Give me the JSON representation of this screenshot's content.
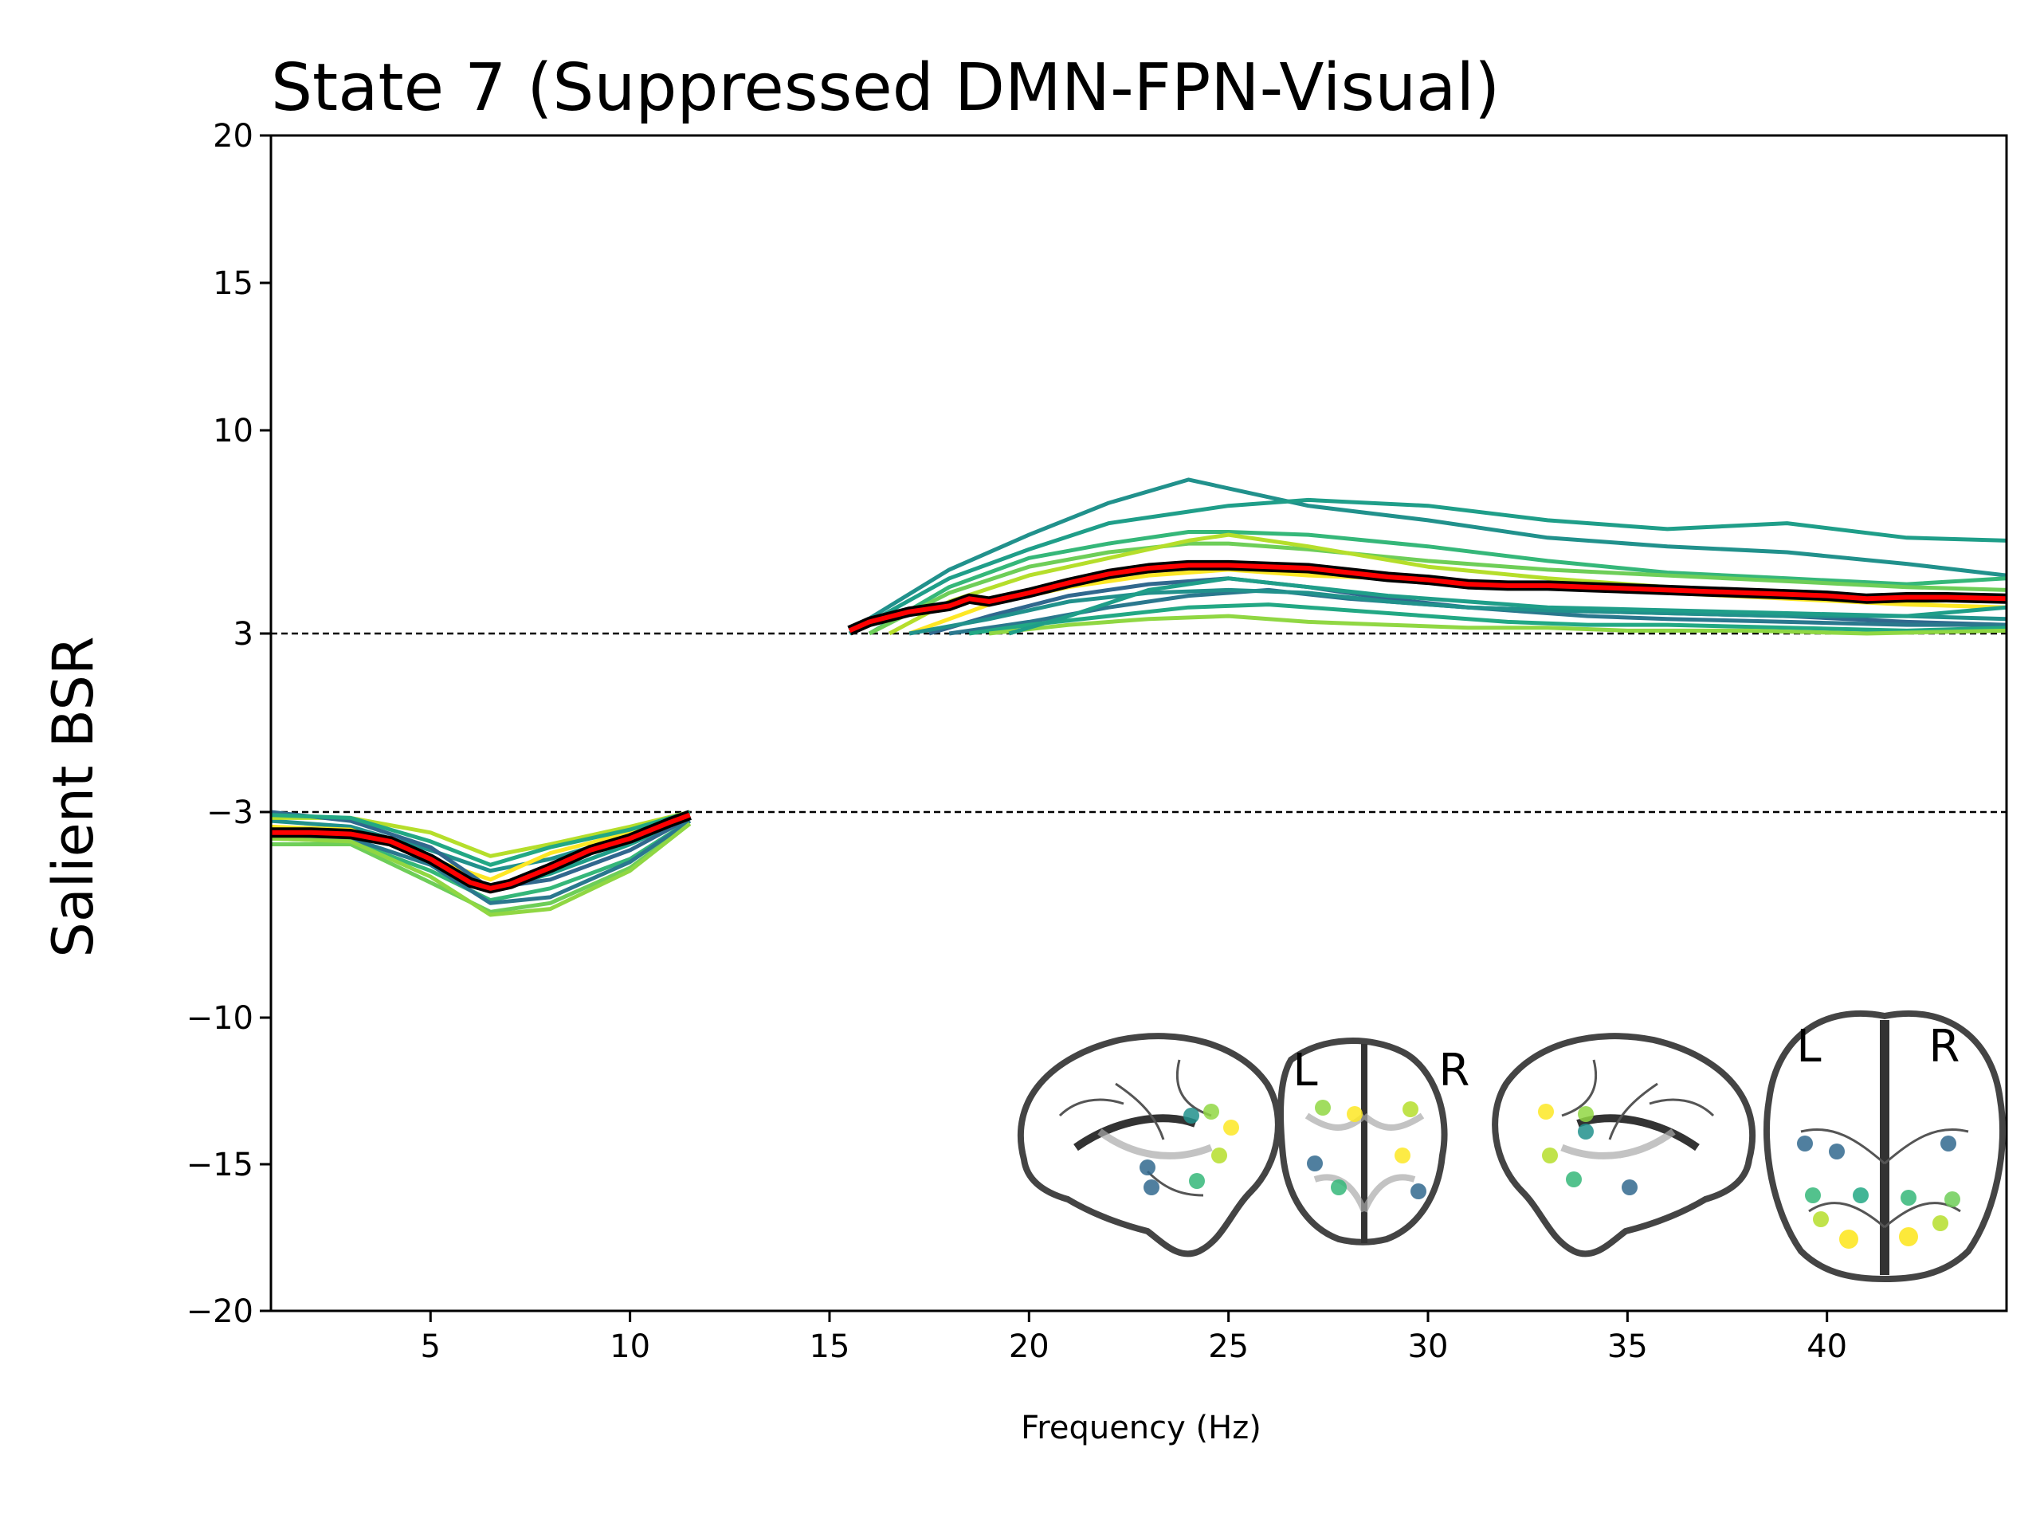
{
  "chart_data": {
    "type": "line",
    "title": "State 7 (Suppressed DMN-FPN-Visual)",
    "xlabel": "Frequency (Hz)",
    "ylabel": "Salient BSR",
    "xlim": [
      1,
      44.5
    ],
    "ylim": [
      -20,
      20
    ],
    "x_ticks": [
      5,
      10,
      15,
      20,
      25,
      30,
      35,
      40
    ],
    "y_ticks": [
      -20,
      -15,
      -10,
      -3,
      3,
      10,
      15,
      20
    ],
    "y_tick_labels": [
      "−20",
      "−15",
      "−10",
      "−3",
      "3",
      "10",
      "15",
      "20"
    ],
    "threshold_lines": [
      3,
      -3
    ],
    "grid": false,
    "colors": {
      "mean_line": "#ff0000",
      "mean_outline": "#000000",
      "threshold": "#000000",
      "palette": [
        "#21918c",
        "#1f9e89",
        "#35b779",
        "#6ece58",
        "#b5de2b",
        "#fde725",
        "#31688e",
        "#2a788e",
        "#22a884",
        "#90d743"
      ]
    },
    "mean_series": {
      "name": "",
      "low": {
        "x": [
          1,
          2,
          3,
          4,
          5,
          6,
          6.5,
          7,
          8,
          9,
          10,
          11,
          11.5
        ],
        "y": [
          -3.7,
          -3.7,
          -3.75,
          -4.0,
          -4.6,
          -5.4,
          -5.6,
          -5.45,
          -4.9,
          -4.3,
          -3.9,
          -3.35,
          -3.1
        ]
      },
      "high": {
        "x": [
          15.5,
          16,
          17,
          18,
          18.5,
          19,
          20,
          21,
          22,
          23,
          24,
          25,
          26,
          27,
          28,
          29,
          30,
          31,
          32,
          33,
          34,
          35,
          36,
          37,
          38,
          39,
          40,
          41,
          42,
          43,
          44.5
        ],
        "y": [
          3.1,
          3.4,
          3.75,
          3.95,
          4.2,
          4.1,
          4.4,
          4.75,
          5.05,
          5.25,
          5.35,
          5.35,
          5.3,
          5.25,
          5.1,
          4.95,
          4.85,
          4.7,
          4.65,
          4.65,
          4.6,
          4.55,
          4.5,
          4.45,
          4.4,
          4.35,
          4.3,
          4.2,
          4.25,
          4.25,
          4.2
        ]
      }
    },
    "channel_series": [
      {
        "x": [
          1,
          3,
          5,
          6.5,
          8,
          10,
          11.5
        ],
        "y": [
          -3.3,
          -3.5,
          -4.3,
          -5.0,
          -4.6,
          -3.8,
          -3.0
        ]
      },
      {
        "x": [
          1,
          3,
          5,
          6.5,
          8,
          10,
          11.5
        ],
        "y": [
          -3.6,
          -3.7,
          -4.5,
          -5.7,
          -5.1,
          -4.1,
          -3.2
        ]
      },
      {
        "x": [
          1,
          3,
          5,
          6.5,
          8,
          10,
          11.5
        ],
        "y": [
          -3.9,
          -4.0,
          -5.0,
          -6.0,
          -5.6,
          -4.6,
          -3.3
        ]
      },
      {
        "x": [
          1,
          3,
          5,
          6.5,
          8,
          10,
          11.5
        ],
        "y": [
          -4.1,
          -4.1,
          -5.4,
          -6.4,
          -6.1,
          -4.9,
          -3.4
        ]
      },
      {
        "x": [
          1,
          3,
          5,
          6.5,
          8,
          10,
          11.5
        ],
        "y": [
          -3.2,
          -3.2,
          -3.7,
          -4.5,
          -4.1,
          -3.5,
          -3.0
        ]
      },
      {
        "x": [
          1,
          3,
          5,
          6.5,
          8,
          10,
          11.5
        ],
        "y": [
          -3.5,
          -3.6,
          -4.6,
          -5.3,
          -4.4,
          -3.7,
          -3.1
        ]
      },
      {
        "x": [
          1,
          3,
          5,
          6.5,
          8,
          10,
          11.5
        ],
        "y": [
          -3.0,
          -3.3,
          -4.2,
          -5.6,
          -5.3,
          -4.3,
          -3.2
        ]
      },
      {
        "x": [
          1,
          3,
          5,
          6.5,
          8,
          10,
          11.5
        ],
        "y": [
          -3.8,
          -3.9,
          -4.8,
          -6.1,
          -5.9,
          -4.7,
          -3.3
        ]
      },
      {
        "x": [
          1,
          3,
          5,
          6.5,
          8,
          10,
          11.5
        ],
        "y": [
          -3.1,
          -3.2,
          -4.0,
          -4.8,
          -4.2,
          -3.6,
          -3.0
        ]
      },
      {
        "x": [
          1,
          3,
          5,
          6.5,
          8,
          10,
          11.5
        ],
        "y": [
          -3.9,
          -4.0,
          -5.2,
          -6.5,
          -6.3,
          -5.0,
          -3.4
        ]
      },
      {
        "x": [
          15.5,
          18,
          20,
          22,
          24,
          25,
          27,
          30,
          33,
          36,
          39,
          42,
          44.5
        ],
        "y": [
          3.1,
          5.2,
          6.4,
          7.5,
          8.3,
          8.0,
          7.4,
          6.9,
          6.3,
          6.0,
          5.8,
          5.4,
          5.0
        ]
      },
      {
        "x": [
          15.5,
          18,
          20,
          22,
          24,
          25,
          27,
          30,
          33,
          36,
          39,
          42,
          44.5
        ],
        "y": [
          3.0,
          4.9,
          5.9,
          6.8,
          7.2,
          7.4,
          7.6,
          7.4,
          6.9,
          6.6,
          6.8,
          6.3,
          6.2
        ]
      },
      {
        "x": [
          16,
          18,
          20,
          22,
          24,
          25,
          27,
          30,
          33,
          36,
          39,
          42,
          44.5
        ],
        "y": [
          3.0,
          4.6,
          5.6,
          6.1,
          6.5,
          6.5,
          6.4,
          6.0,
          5.5,
          5.1,
          4.9,
          4.7,
          4.9
        ]
      },
      {
        "x": [
          16,
          18,
          20,
          22,
          24,
          25,
          27,
          30,
          33,
          36,
          39,
          42,
          44.5
        ],
        "y": [
          3.0,
          4.4,
          5.3,
          5.8,
          6.1,
          6.1,
          5.9,
          5.5,
          5.2,
          5.0,
          4.8,
          4.6,
          4.5
        ]
      },
      {
        "x": [
          16.5,
          18,
          20,
          22,
          24,
          25,
          27,
          30,
          33,
          36,
          39,
          42,
          44.5
        ],
        "y": [
          3.0,
          4.1,
          5.0,
          5.6,
          6.2,
          6.4,
          6.0,
          5.3,
          4.9,
          4.6,
          4.3,
          4.1,
          4.2
        ]
      },
      {
        "x": [
          17,
          19,
          21,
          23,
          25,
          27,
          29,
          31,
          33,
          36,
          39,
          42,
          44.5
        ],
        "y": [
          3.0,
          4.0,
          4.6,
          5.0,
          5.2,
          5.0,
          4.9,
          4.7,
          4.6,
          4.4,
          4.2,
          4.0,
          3.9
        ]
      },
      {
        "x": [
          17.5,
          19,
          21,
          23,
          25,
          27,
          29,
          31,
          33,
          36,
          39,
          42,
          44.5
        ],
        "y": [
          3.0,
          3.6,
          4.3,
          4.7,
          4.9,
          4.6,
          4.2,
          3.9,
          3.8,
          3.7,
          3.6,
          3.4,
          3.3
        ]
      },
      {
        "x": [
          18,
          20,
          22,
          24,
          26,
          28,
          30,
          32,
          34,
          36,
          39,
          42,
          44.5
        ],
        "y": [
          3.0,
          3.4,
          3.9,
          4.3,
          4.5,
          4.2,
          4.0,
          3.8,
          3.6,
          3.5,
          3.4,
          3.3,
          3.3
        ]
      },
      {
        "x": [
          18.5,
          20,
          22,
          24,
          26,
          28,
          30,
          32,
          34,
          36,
          39,
          42,
          44.5
        ],
        "y": [
          3.0,
          3.3,
          3.6,
          3.9,
          4.0,
          3.8,
          3.6,
          3.4,
          3.3,
          3.3,
          3.2,
          3.1,
          3.2
        ]
      },
      {
        "x": [
          19,
          21,
          23,
          25,
          27,
          29,
          31,
          33,
          35,
          38,
          41,
          44.5
        ],
        "y": [
          3.0,
          3.3,
          3.5,
          3.6,
          3.4,
          3.3,
          3.2,
          3.2,
          3.1,
          3.1,
          3.0,
          3.1
        ]
      },
      {
        "x": [
          17,
          19,
          21,
          23,
          25,
          27,
          29,
          31,
          33,
          36,
          39,
          42,
          44.5
        ],
        "y": [
          3.0,
          3.5,
          4.1,
          4.4,
          4.5,
          4.4,
          4.1,
          3.9,
          3.8,
          3.7,
          3.6,
          3.6,
          3.5
        ]
      },
      {
        "x": [
          19.5,
          21,
          23,
          25,
          27,
          29,
          31,
          33,
          36,
          39,
          42,
          44.5
        ],
        "y": [
          3.0,
          3.6,
          4.5,
          4.9,
          4.6,
          4.3,
          4.1,
          3.9,
          3.8,
          3.7,
          3.6,
          3.9
        ]
      }
    ],
    "inset": {
      "labels": {
        "left": "L",
        "right": "R"
      }
    }
  }
}
